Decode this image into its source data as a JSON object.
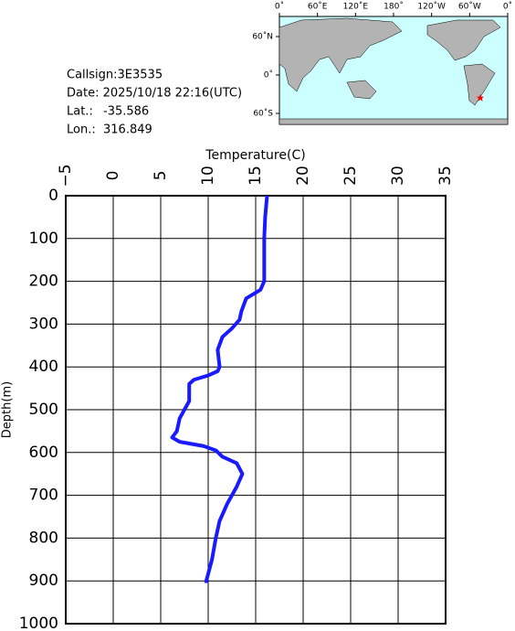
{
  "station": {
    "callsign": "Callsign:3E3535",
    "date": "Date:  2025/10/18 22:16(UTC)",
    "lat_label": "Lat.:",
    "lat": -35.586,
    "lon_label": "Lon.:",
    "lon": 316.849
  },
  "map": {
    "lon_ticks": [
      {
        "value": 0,
        "label": "0˚"
      },
      {
        "value": 60,
        "label": "60˚E"
      },
      {
        "value": 120,
        "label": "120˚E"
      },
      {
        "value": 180,
        "label": "180˚"
      },
      {
        "value": 240,
        "label": "120˚W"
      },
      {
        "value": 300,
        "label": "60˚W"
      },
      {
        "value": 360,
        "label": "0˚"
      }
    ],
    "lat_ticks": [
      {
        "value": 60,
        "label": "60˚N"
      },
      {
        "value": 0,
        "label": "0˚"
      },
      {
        "value": -60,
        "label": "60˚S"
      }
    ]
  },
  "chart_data": {
    "type": "line",
    "x_label": "Temperature(C)",
    "y_label": "Depth(m)",
    "depth": [
      0,
      50,
      100,
      150,
      200,
      220,
      240,
      270,
      290,
      310,
      330,
      360,
      400,
      410,
      420,
      430,
      440,
      480,
      520,
      550,
      565,
      575,
      585,
      595,
      610,
      625,
      650,
      680,
      720,
      760,
      800,
      850,
      900,
      905
    ],
    "values": [
      16.2,
      16.0,
      15.9,
      15.9,
      15.9,
      15.5,
      14.0,
      13.5,
      13.3,
      12.5,
      11.5,
      11.0,
      11.2,
      11.0,
      10.0,
      8.5,
      8.0,
      8.0,
      7.0,
      6.7,
      6.2,
      7.0,
      9.5,
      10.8,
      11.5,
      13.0,
      13.6,
      13.0,
      12.0,
      11.2,
      10.8,
      10.4,
      9.8,
      9.8
    ],
    "color": "#1a1aff",
    "xlim": [
      -5,
      35
    ],
    "xticks": [
      {
        "value": -5,
        "label": "−5"
      },
      0,
      5,
      10,
      15,
      20,
      25,
      30,
      35
    ],
    "ylim": [
      0,
      1000
    ],
    "yticks": [
      0,
      100,
      200,
      300,
      400,
      500,
      600,
      700,
      800,
      900,
      1000
    ],
    "grid": true
  }
}
